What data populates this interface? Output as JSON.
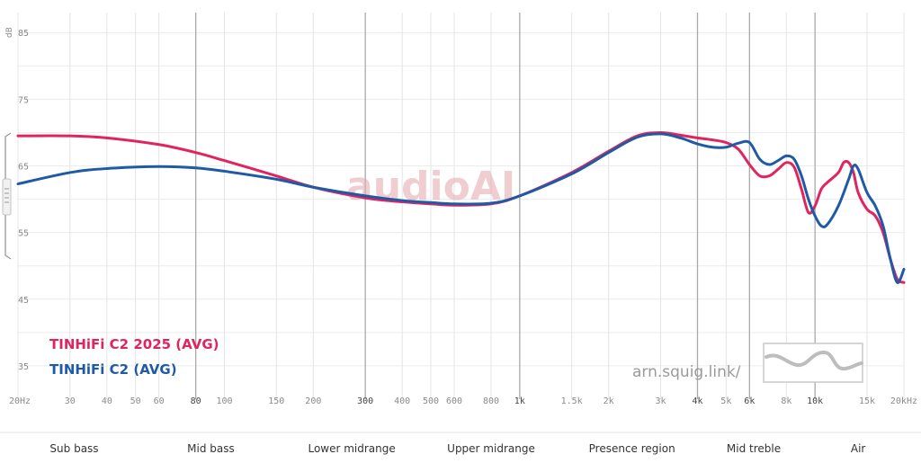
{
  "chart_data": {
    "type": "line",
    "xscale": "log",
    "xlim": [
      20,
      20000
    ],
    "ylim": [
      30,
      88
    ],
    "ylabel": "dB",
    "y_ticks": [
      35,
      45,
      55,
      65,
      75,
      85
    ],
    "x_ticks": [
      {
        "v": 20,
        "label": "20Hz",
        "major": false
      },
      {
        "v": 30,
        "label": "30",
        "major": false
      },
      {
        "v": 40,
        "label": "40",
        "major": false
      },
      {
        "v": 50,
        "label": "50",
        "major": false
      },
      {
        "v": 60,
        "label": "60",
        "major": false
      },
      {
        "v": 80,
        "label": "80",
        "major": true
      },
      {
        "v": 100,
        "label": "100",
        "major": false
      },
      {
        "v": 150,
        "label": "150",
        "major": false
      },
      {
        "v": 200,
        "label": "200",
        "major": false
      },
      {
        "v": 300,
        "label": "300",
        "major": true
      },
      {
        "v": 400,
        "label": "400",
        "major": false
      },
      {
        "v": 500,
        "label": "500",
        "major": false
      },
      {
        "v": 600,
        "label": "600",
        "major": false
      },
      {
        "v": 800,
        "label": "800",
        "major": false
      },
      {
        "v": 1000,
        "label": "1k",
        "major": true
      },
      {
        "v": 1500,
        "label": "1.5k",
        "major": false
      },
      {
        "v": 2000,
        "label": "2k",
        "major": false
      },
      {
        "v": 3000,
        "label": "3k",
        "major": false
      },
      {
        "v": 4000,
        "label": "4k",
        "major": true
      },
      {
        "v": 5000,
        "label": "5k",
        "major": false
      },
      {
        "v": 6000,
        "label": "6k",
        "major": true
      },
      {
        "v": 8000,
        "label": "8k",
        "major": false
      },
      {
        "v": 10000,
        "label": "10k",
        "major": true
      },
      {
        "v": 15000,
        "label": "15k",
        "major": false
      },
      {
        "v": 20000,
        "label": "20kHz",
        "major": false
      }
    ],
    "bands": [
      {
        "label": "Sub bass",
        "f": 31
      },
      {
        "label": "Mid bass",
        "f": 90
      },
      {
        "label": "Lower midrange",
        "f": 270
      },
      {
        "label": "Upper midrange",
        "f": 800
      },
      {
        "label": "Presence region",
        "f": 2400
      },
      {
        "label": "Mid treble",
        "f": 6200
      },
      {
        "label": "Air",
        "f": 14000
      }
    ],
    "series": [
      {
        "name": "TINHiFi C2 2025 (AVG)",
        "color": "#e0245e",
        "points": [
          [
            20,
            69.5
          ],
          [
            30,
            69.5
          ],
          [
            40,
            69.2
          ],
          [
            60,
            68.2
          ],
          [
            80,
            67
          ],
          [
            100,
            65.8
          ],
          [
            150,
            63.5
          ],
          [
            200,
            61.8
          ],
          [
            300,
            60.2
          ],
          [
            400,
            59.6
          ],
          [
            500,
            59.3
          ],
          [
            600,
            59.1
          ],
          [
            800,
            59.3
          ],
          [
            1000,
            60.5
          ],
          [
            1500,
            64
          ],
          [
            2000,
            67.2
          ],
          [
            2500,
            69.5
          ],
          [
            3000,
            70
          ],
          [
            3500,
            69.6
          ],
          [
            4000,
            69.2
          ],
          [
            4500,
            68.9
          ],
          [
            5000,
            68.5
          ],
          [
            5500,
            67.5
          ],
          [
            6000,
            65.2
          ],
          [
            6500,
            63.5
          ],
          [
            7000,
            63.5
          ],
          [
            7500,
            64.5
          ],
          [
            8000,
            65.5
          ],
          [
            8500,
            64.8
          ],
          [
            9000,
            61.5
          ],
          [
            9500,
            58
          ],
          [
            10000,
            59
          ],
          [
            10500,
            61.5
          ],
          [
            11000,
            62.5
          ],
          [
            12000,
            64
          ],
          [
            12500,
            65.5
          ],
          [
            13000,
            65.5
          ],
          [
            13500,
            64
          ],
          [
            14000,
            61
          ],
          [
            15000,
            58.5
          ],
          [
            16000,
            57.5
          ],
          [
            17000,
            55
          ],
          [
            18000,
            51
          ],
          [
            19000,
            48
          ],
          [
            20000,
            47.5
          ]
        ]
      },
      {
        "name": "TINHiFi C2 (AVG)",
        "color": "#1f5aa6",
        "points": [
          [
            20,
            62.3
          ],
          [
            30,
            64
          ],
          [
            40,
            64.6
          ],
          [
            60,
            64.9
          ],
          [
            80,
            64.7
          ],
          [
            100,
            64.2
          ],
          [
            150,
            63
          ],
          [
            200,
            61.8
          ],
          [
            300,
            60.5
          ],
          [
            400,
            59.8
          ],
          [
            500,
            59.5
          ],
          [
            600,
            59.3
          ],
          [
            800,
            59.4
          ],
          [
            1000,
            60.5
          ],
          [
            1500,
            63.8
          ],
          [
            2000,
            67
          ],
          [
            2500,
            69.3
          ],
          [
            3000,
            69.8
          ],
          [
            3500,
            69.2
          ],
          [
            4000,
            68.3
          ],
          [
            4500,
            67.8
          ],
          [
            5000,
            67.8
          ],
          [
            5500,
            68.4
          ],
          [
            6000,
            68.5
          ],
          [
            6500,
            66
          ],
          [
            7000,
            65.2
          ],
          [
            7500,
            65.8
          ],
          [
            8000,
            66.5
          ],
          [
            8500,
            66
          ],
          [
            9000,
            63.5
          ],
          [
            9500,
            60
          ],
          [
            10000,
            57.5
          ],
          [
            10500,
            56
          ],
          [
            11000,
            56.2
          ],
          [
            12000,
            59
          ],
          [
            13000,
            63
          ],
          [
            13500,
            65
          ],
          [
            14000,
            64.5
          ],
          [
            15000,
            61
          ],
          [
            16000,
            59
          ],
          [
            17000,
            56
          ],
          [
            18000,
            51
          ],
          [
            19000,
            47.5
          ],
          [
            20000,
            49.5
          ]
        ]
      }
    ]
  },
  "watermark": "audioAI",
  "site": "arn.squig.link/"
}
